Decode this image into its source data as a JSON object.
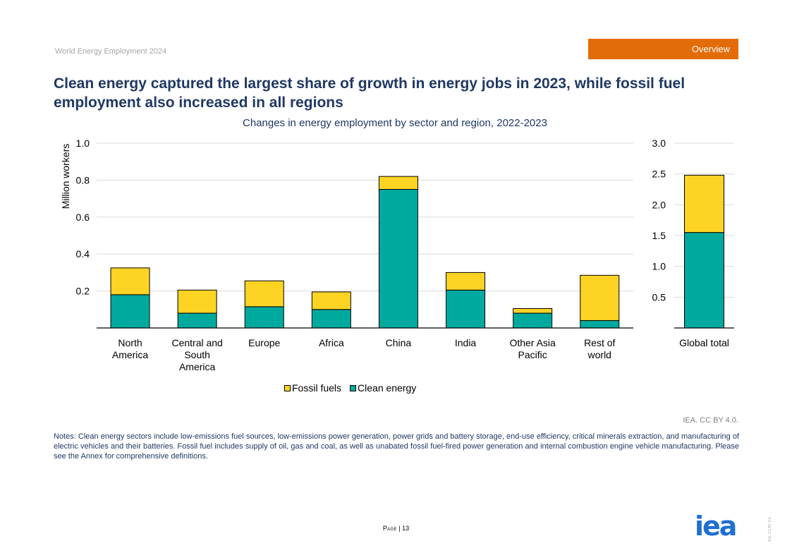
{
  "header": {
    "doc_title": "World Energy Employment 2024",
    "section_tag": "Overview",
    "headline": "Clean energy captured the largest share of growth in energy jobs in 2023, while fossil fuel employment also increased in all regions"
  },
  "chart_data": [
    {
      "type": "bar",
      "stacked": true,
      "title": "Changes in energy employment by sector and region, 2022-2023",
      "ylabel": "Million workers",
      "ylim": [
        0,
        1.0
      ],
      "yticks": [
        "0.2",
        "0.4",
        "0.6",
        "0.8",
        "1.0"
      ],
      "categories": [
        [
          "North",
          "America"
        ],
        [
          "Central and",
          "South",
          "America"
        ],
        [
          "Europe"
        ],
        [
          "Africa"
        ],
        [
          "China"
        ],
        [
          "India"
        ],
        [
          "Other Asia",
          "Pacific"
        ],
        [
          "Rest of",
          "world"
        ]
      ],
      "series": [
        {
          "name": "Clean energy",
          "color": "#00a99d",
          "values": [
            0.18,
            0.08,
            0.115,
            0.1,
            0.75,
            0.205,
            0.08,
            0.04
          ]
        },
        {
          "name": "Fossil fuels",
          "color": "#fdd324",
          "values": [
            0.145,
            0.125,
            0.14,
            0.095,
            0.07,
            0.095,
            0.025,
            0.245
          ]
        }
      ]
    },
    {
      "type": "bar",
      "stacked": true,
      "ylim": [
        0,
        3.0
      ],
      "yticks": [
        "0.5",
        "1.0",
        "1.5",
        "2.0",
        "2.5",
        "3.0"
      ],
      "categories": [
        [
          "Global total"
        ]
      ],
      "series": [
        {
          "name": "Clean energy",
          "color": "#00a99d",
          "values": [
            1.55
          ]
        },
        {
          "name": "Fossil fuels",
          "color": "#fdd324",
          "values": [
            0.93
          ]
        }
      ]
    }
  ],
  "legend": {
    "fossil": "Fossil fuels",
    "clean": "Clean energy",
    "fossil_color": "#fdd324",
    "clean_color": "#00a99d"
  },
  "footer": {
    "credit": "IEA. CC BY 4.0.",
    "notes": "Notes: Clean energy sectors include low-emissions fuel sources, low-emissions power generation, power grids and battery storage, end-use efficiency, critical minerals extraction, and manufacturing of electric vehicles and their batteries. Fossil fuel includes supply of oil, gas and coal, as well as unabated fossil fuel-fired power generation and internal combustion engine vehicle manufacturing. Please see the Annex for comprehensive definitions.",
    "page_word": "Page",
    "page_number": "13",
    "logo_text": "iea",
    "vertical_credit": "IEA. CC BY 4.0."
  }
}
